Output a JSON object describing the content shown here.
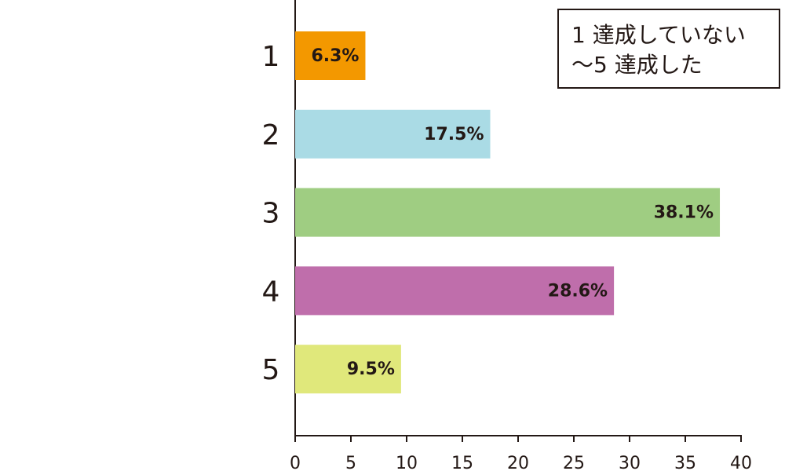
{
  "chart_data": {
    "type": "barh",
    "categories": [
      "1",
      "2",
      "3",
      "4",
      "5"
    ],
    "values": [
      6.3,
      17.5,
      38.1,
      28.6,
      9.5
    ],
    "value_labels": [
      "6.3%",
      "17.5%",
      "38.1%",
      "28.6%",
      "9.5%"
    ],
    "colors": [
      "#f39800",
      "#aadbe5",
      "#9fcd82",
      "#bf6eab",
      "#e0e87b"
    ],
    "xlim": [
      0,
      40
    ],
    "xticks": [
      0,
      5,
      10,
      15,
      20,
      25,
      30,
      35,
      40
    ],
    "grid": false,
    "annotation_lines": [
      "1 達成していない",
      "〜5 達成した"
    ]
  }
}
